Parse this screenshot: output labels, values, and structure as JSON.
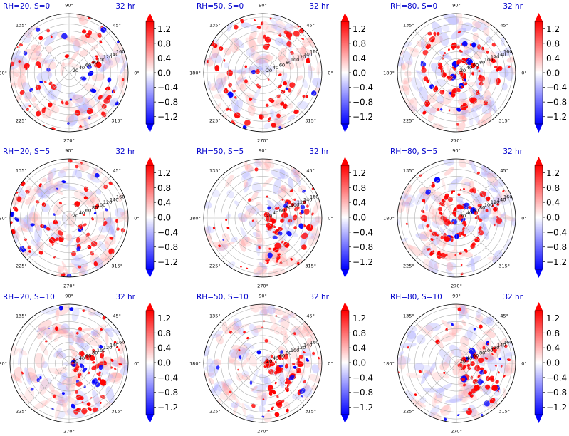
{
  "chart_data": {
    "type": "heatmap",
    "projection": "polar",
    "grid": true,
    "colormap": "bwr",
    "colors": {
      "positive": "#ff0000",
      "negative": "#0000ff",
      "neutral": "#ffffff",
      "title": "#0000cc"
    },
    "angle_ticks": [
      "45°",
      "90°",
      "135°",
      "180°",
      "225°",
      "270°",
      "315°",
      "0°"
    ],
    "radial_ticks": [
      "20",
      "40",
      "60",
      "80",
      "100",
      "120",
      "140",
      "160"
    ],
    "radial_range": [
      0,
      170
    ],
    "colorbar": {
      "ticks": [
        "1.2",
        "0.8",
        "0.4",
        "0.0",
        "−0.4",
        "−0.8",
        "−1.2"
      ],
      "range": [
        -1.4,
        1.4
      ],
      "extend": "both"
    },
    "panels": [
      {
        "title": "RH=20, S=0",
        "time": "32 hr",
        "pattern": "scatter"
      },
      {
        "title": "RH=50, S=0",
        "time": "32 hr",
        "pattern": "scatter"
      },
      {
        "title": "RH=80, S=0",
        "time": "32 hr",
        "pattern": "spiral"
      },
      {
        "title": "RH=20, S=5",
        "time": "32 hr",
        "pattern": "scatter"
      },
      {
        "title": "RH=50, S=5",
        "time": "32 hr",
        "pattern": "sheared"
      },
      {
        "title": "RH=80, S=5",
        "time": "32 hr",
        "pattern": "spiral"
      },
      {
        "title": "RH=20, S=10",
        "time": "32 hr",
        "pattern": "sheared"
      },
      {
        "title": "RH=50, S=10",
        "time": "32 hr",
        "pattern": "sheared"
      },
      {
        "title": "RH=80, S=10",
        "time": "32 hr",
        "pattern": "sheared"
      }
    ]
  }
}
